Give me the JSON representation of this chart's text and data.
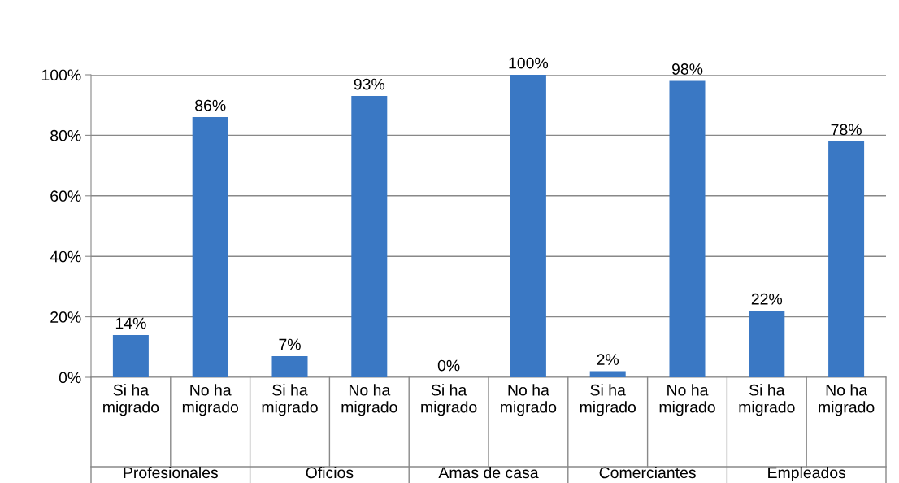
{
  "chart_data": {
    "type": "bar",
    "categories": [
      "Si ha\nmigrado",
      "No ha\nmigrado",
      "Si ha\nmigrado",
      "No ha\nmigrado",
      "Si ha\nmigrado",
      "No ha\nmigrado",
      "Si ha\nmigrado",
      "No ha\nmigrado",
      "Si ha\nmigrado",
      "No ha\nmigrado"
    ],
    "values": [
      14,
      86,
      7,
      93,
      0,
      100,
      2,
      98,
      22,
      78
    ],
    "value_labels": [
      "14%",
      "86%",
      "7%",
      "93%",
      "0%",
      "100%",
      "2%",
      "98%",
      "22%",
      "78%"
    ],
    "color": "#3a78c4",
    "ylim": [
      0,
      100
    ],
    "yticks": [
      {
        "value": 0,
        "label": "0%"
      },
      {
        "value": 20,
        "label": "20%"
      },
      {
        "value": 40,
        "label": "40%"
      },
      {
        "value": 60,
        "label": "60%"
      },
      {
        "value": 80,
        "label": "80%"
      },
      {
        "value": 100,
        "label": "100%"
      }
    ],
    "grid": "y",
    "annotations": [
      "Profesionales",
      "Oficios",
      "Amas de casa",
      "Comerciantes",
      "Empleados"
    ]
  }
}
